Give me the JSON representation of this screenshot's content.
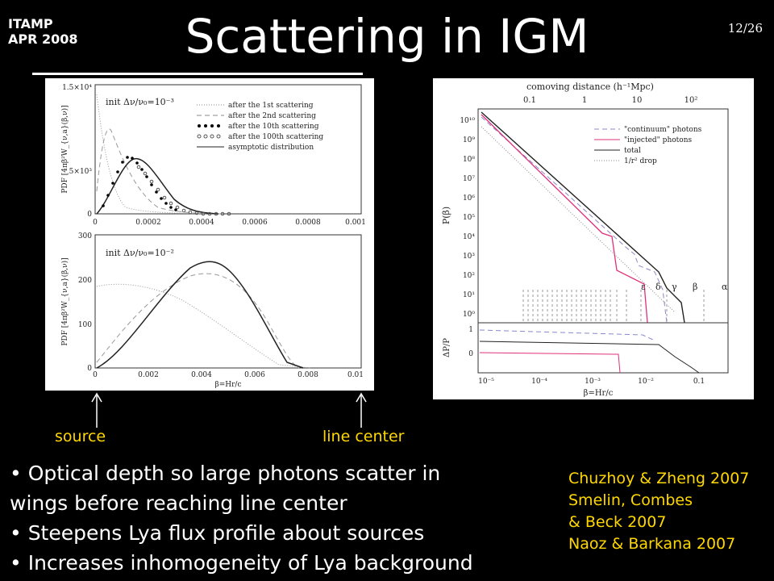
{
  "slide": {
    "corner": [
      "ITAMP",
      "APR 2008"
    ],
    "page_number": "12/26",
    "title": "Scattering in IGM",
    "markers": {
      "source": "source",
      "line_center": "line center"
    },
    "bullets": [
      "• Optical depth so large photons scatter in",
      "wings before reaching line center",
      "• Steepens Lya flux profile about sources",
      "• Increases inhomogeneity of Lya background"
    ],
    "references": [
      "Chuzhoy & Zheng 2007",
      "Smelin, Combes",
      "& Beck 2007",
      "Naoz & Barkana 2007"
    ]
  },
  "left_figure": {
    "top_panel": {
      "annotation": "init Δν/ν₀=10⁻³",
      "ylabel": "PDF [4πβ²W_{ν,a}(β,ν)]",
      "ytick_labels": [
        "0",
        "5×10³",
        "1.5×10⁴"
      ],
      "xtick_labels": [
        "0",
        "0.0002",
        "0.0004",
        "0.0006",
        "0.0008",
        "0.001"
      ],
      "legend": [
        "after the 1st scattering",
        "after the 2nd scattering",
        "after the 10th scattering",
        "after the 100th scattering",
        "asymptotic distribution"
      ]
    },
    "bottom_panel": {
      "annotation": "init Δν/ν₀=10⁻²",
      "ylabel": "PDF [4πβ²W_{ν,a}(β,ν)]",
      "ytick_labels": [
        "0",
        "100",
        "200",
        "300"
      ],
      "xtick_labels": [
        "0",
        "0.002",
        "0.004",
        "0.006",
        "0.008",
        "0.01"
      ],
      "xlabel": "β=Hr/c"
    }
  },
  "right_figure": {
    "top_axis_label": "comoving distance (h⁻¹Mpc)",
    "top_tick_labels": [
      "0.1",
      "1",
      "10",
      "10²"
    ],
    "ylabel_top": "P(β)",
    "ytick_labels_top": [
      "10⁰",
      "10¹",
      "10²",
      "10³",
      "10⁴",
      "10⁵",
      "10⁶",
      "10⁷",
      "10⁸",
      "10⁹",
      "10¹⁰"
    ],
    "legend": [
      "\"continuum\" photons",
      "\"injected\" photons",
      "total",
      "1/r² drop"
    ],
    "greek_labels": [
      "ε",
      "δ",
      "γ",
      "β",
      "α"
    ],
    "ylabel_bottom": "ΔP/P",
    "ytick_labels_bottom": [
      "0",
      "1"
    ],
    "xtick_labels": [
      "10⁻⁵",
      "10⁻⁴",
      "10⁻³",
      "10⁻²",
      "0.1"
    ],
    "xlabel": "β=Hr/c"
  }
}
